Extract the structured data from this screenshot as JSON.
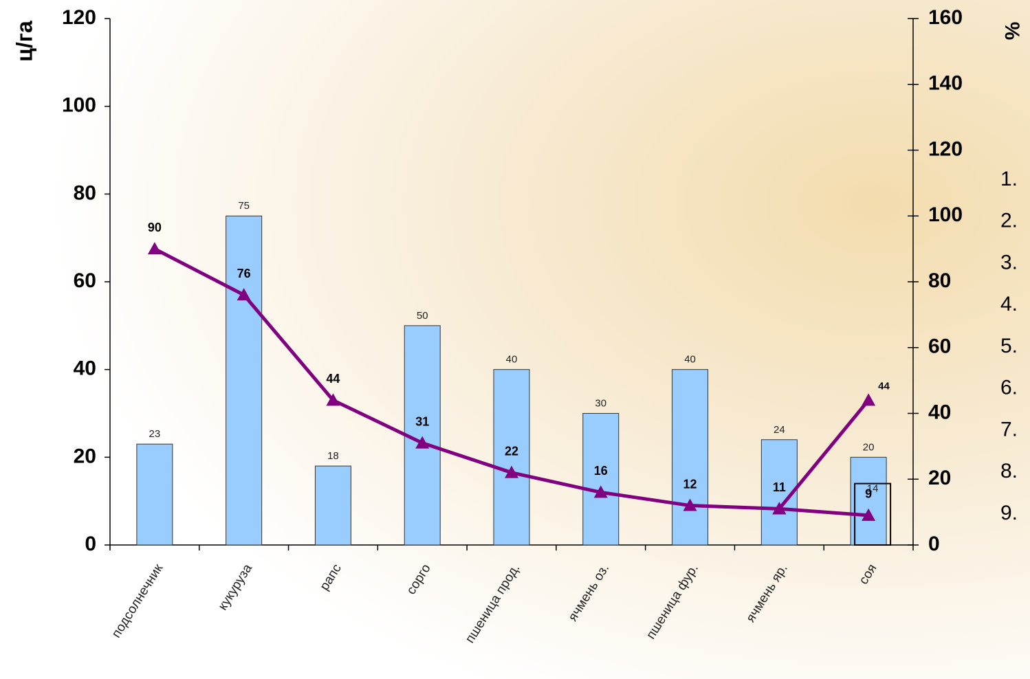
{
  "chart_data": {
    "type": "bar",
    "y_label": "ц/га",
    "y2_label": "%",
    "categories": [
      "подсолнечник",
      "кукуруза",
      "рапс",
      "сорго",
      "пшеница прод.",
      "ячмень оз.",
      "пшеница фур.",
      "ячмень яр.",
      "соя"
    ],
    "series": [
      {
        "type": "bar",
        "color": "#99ccff",
        "values": [
          23,
          75,
          18,
          50,
          40,
          30,
          40,
          24,
          20
        ]
      },
      {
        "type": "bar",
        "color": "#99ccff",
        "values": [
          null,
          null,
          null,
          null,
          null,
          null,
          null,
          null,
          14
        ]
      },
      {
        "type": "line",
        "axis": "y2",
        "color": "#800080",
        "values": [
          90,
          76,
          44,
          31,
          22,
          16,
          12,
          11,
          9
        ]
      },
      {
        "type": "line",
        "axis": "y2",
        "color": "#800080",
        "values": [
          null,
          null,
          null,
          null,
          null,
          null,
          null,
          11,
          44
        ]
      }
    ],
    "ylim": [
      0,
      120
    ],
    "yticks": [
      0,
      20,
      40,
      60,
      80,
      100,
      120
    ],
    "y2lim": [
      0,
      160
    ],
    "y2ticks": [
      0,
      20,
      40,
      60,
      80,
      100,
      120,
      140,
      160
    ],
    "annotations": [
      "1.",
      "2.",
      "3.",
      "4.",
      "5.",
      "6.",
      "7.",
      "8.",
      "9."
    ]
  }
}
